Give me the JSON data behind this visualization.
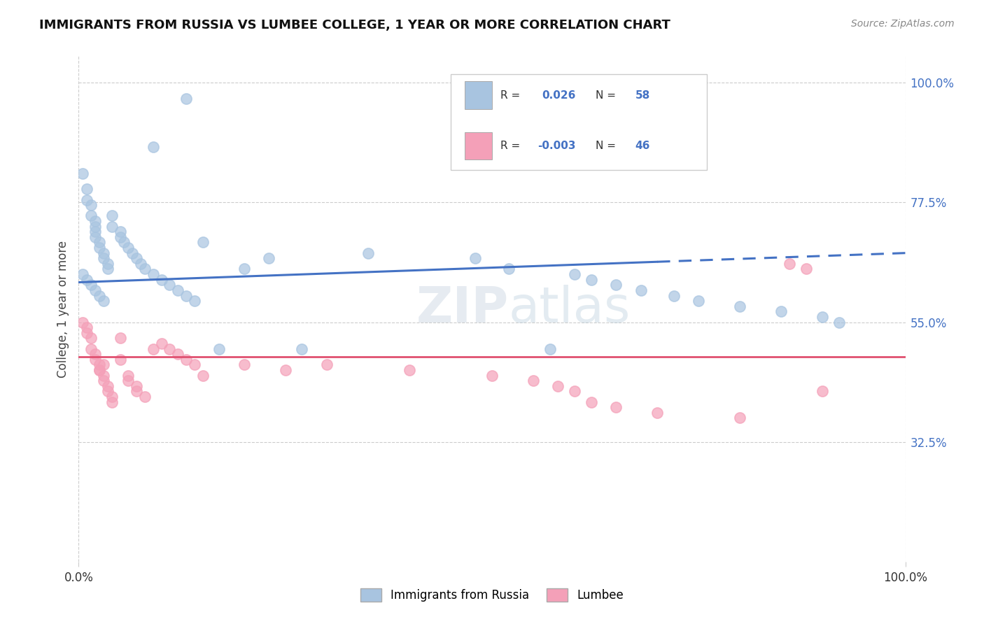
{
  "title": "IMMIGRANTS FROM RUSSIA VS LUMBEE COLLEGE, 1 YEAR OR MORE CORRELATION CHART",
  "source_text": "Source: ZipAtlas.com",
  "ylabel": "College, 1 year or more",
  "R_blue": 0.026,
  "N_blue": 58,
  "R_pink": -0.003,
  "N_pink": 46,
  "blue_color": "#a8c4e0",
  "pink_color": "#f4a0b8",
  "line_blue": "#4472c4",
  "line_pink": "#e05070",
  "watermark_color": "#c8d8e8",
  "ytick_color": "#4472c4",
  "grid_color": "#cccccc",
  "blue_x": [
    0.13,
    0.09,
    0.005,
    0.01,
    0.01,
    0.015,
    0.015,
    0.02,
    0.02,
    0.02,
    0.02,
    0.025,
    0.025,
    0.03,
    0.03,
    0.035,
    0.035,
    0.04,
    0.04,
    0.05,
    0.05,
    0.055,
    0.06,
    0.065,
    0.07,
    0.075,
    0.08,
    0.09,
    0.1,
    0.11,
    0.12,
    0.13,
    0.14,
    0.15,
    0.17,
    0.2,
    0.23,
    0.27,
    0.35,
    0.48,
    0.52,
    0.57,
    0.6,
    0.62,
    0.65,
    0.68,
    0.72,
    0.75,
    0.8,
    0.85,
    0.9,
    0.92,
    0.005,
    0.01,
    0.015,
    0.02,
    0.025,
    0.03
  ],
  "blue_y": [
    0.97,
    0.88,
    0.83,
    0.8,
    0.78,
    0.77,
    0.75,
    0.74,
    0.73,
    0.72,
    0.71,
    0.7,
    0.69,
    0.68,
    0.67,
    0.66,
    0.65,
    0.75,
    0.73,
    0.72,
    0.71,
    0.7,
    0.69,
    0.68,
    0.67,
    0.66,
    0.65,
    0.64,
    0.63,
    0.62,
    0.61,
    0.6,
    0.59,
    0.7,
    0.5,
    0.65,
    0.67,
    0.5,
    0.68,
    0.67,
    0.65,
    0.5,
    0.64,
    0.63,
    0.62,
    0.61,
    0.6,
    0.59,
    0.58,
    0.57,
    0.56,
    0.55,
    0.64,
    0.63,
    0.62,
    0.61,
    0.6,
    0.59
  ],
  "pink_x": [
    0.005,
    0.01,
    0.01,
    0.015,
    0.015,
    0.02,
    0.02,
    0.025,
    0.025,
    0.03,
    0.03,
    0.035,
    0.035,
    0.04,
    0.04,
    0.05,
    0.05,
    0.06,
    0.06,
    0.07,
    0.07,
    0.08,
    0.09,
    0.1,
    0.11,
    0.12,
    0.13,
    0.14,
    0.15,
    0.2,
    0.25,
    0.3,
    0.4,
    0.5,
    0.55,
    0.58,
    0.6,
    0.62,
    0.65,
    0.7,
    0.8,
    0.86,
    0.88,
    0.9,
    0.025,
    0.03
  ],
  "pink_y": [
    0.55,
    0.54,
    0.53,
    0.52,
    0.5,
    0.49,
    0.48,
    0.47,
    0.46,
    0.45,
    0.44,
    0.43,
    0.42,
    0.41,
    0.4,
    0.52,
    0.48,
    0.45,
    0.44,
    0.43,
    0.42,
    0.41,
    0.5,
    0.51,
    0.5,
    0.49,
    0.48,
    0.47,
    0.45,
    0.47,
    0.46,
    0.47,
    0.46,
    0.45,
    0.44,
    0.43,
    0.42,
    0.4,
    0.39,
    0.38,
    0.37,
    0.66,
    0.65,
    0.42,
    0.46,
    0.47
  ],
  "blue_line_solid_end": 0.7,
  "blue_line_y_start": 0.625,
  "blue_line_y_end": 0.68,
  "pink_line_y": 0.485,
  "ylim": [
    0.1,
    1.05
  ],
  "xlim": [
    0.0,
    1.0
  ]
}
